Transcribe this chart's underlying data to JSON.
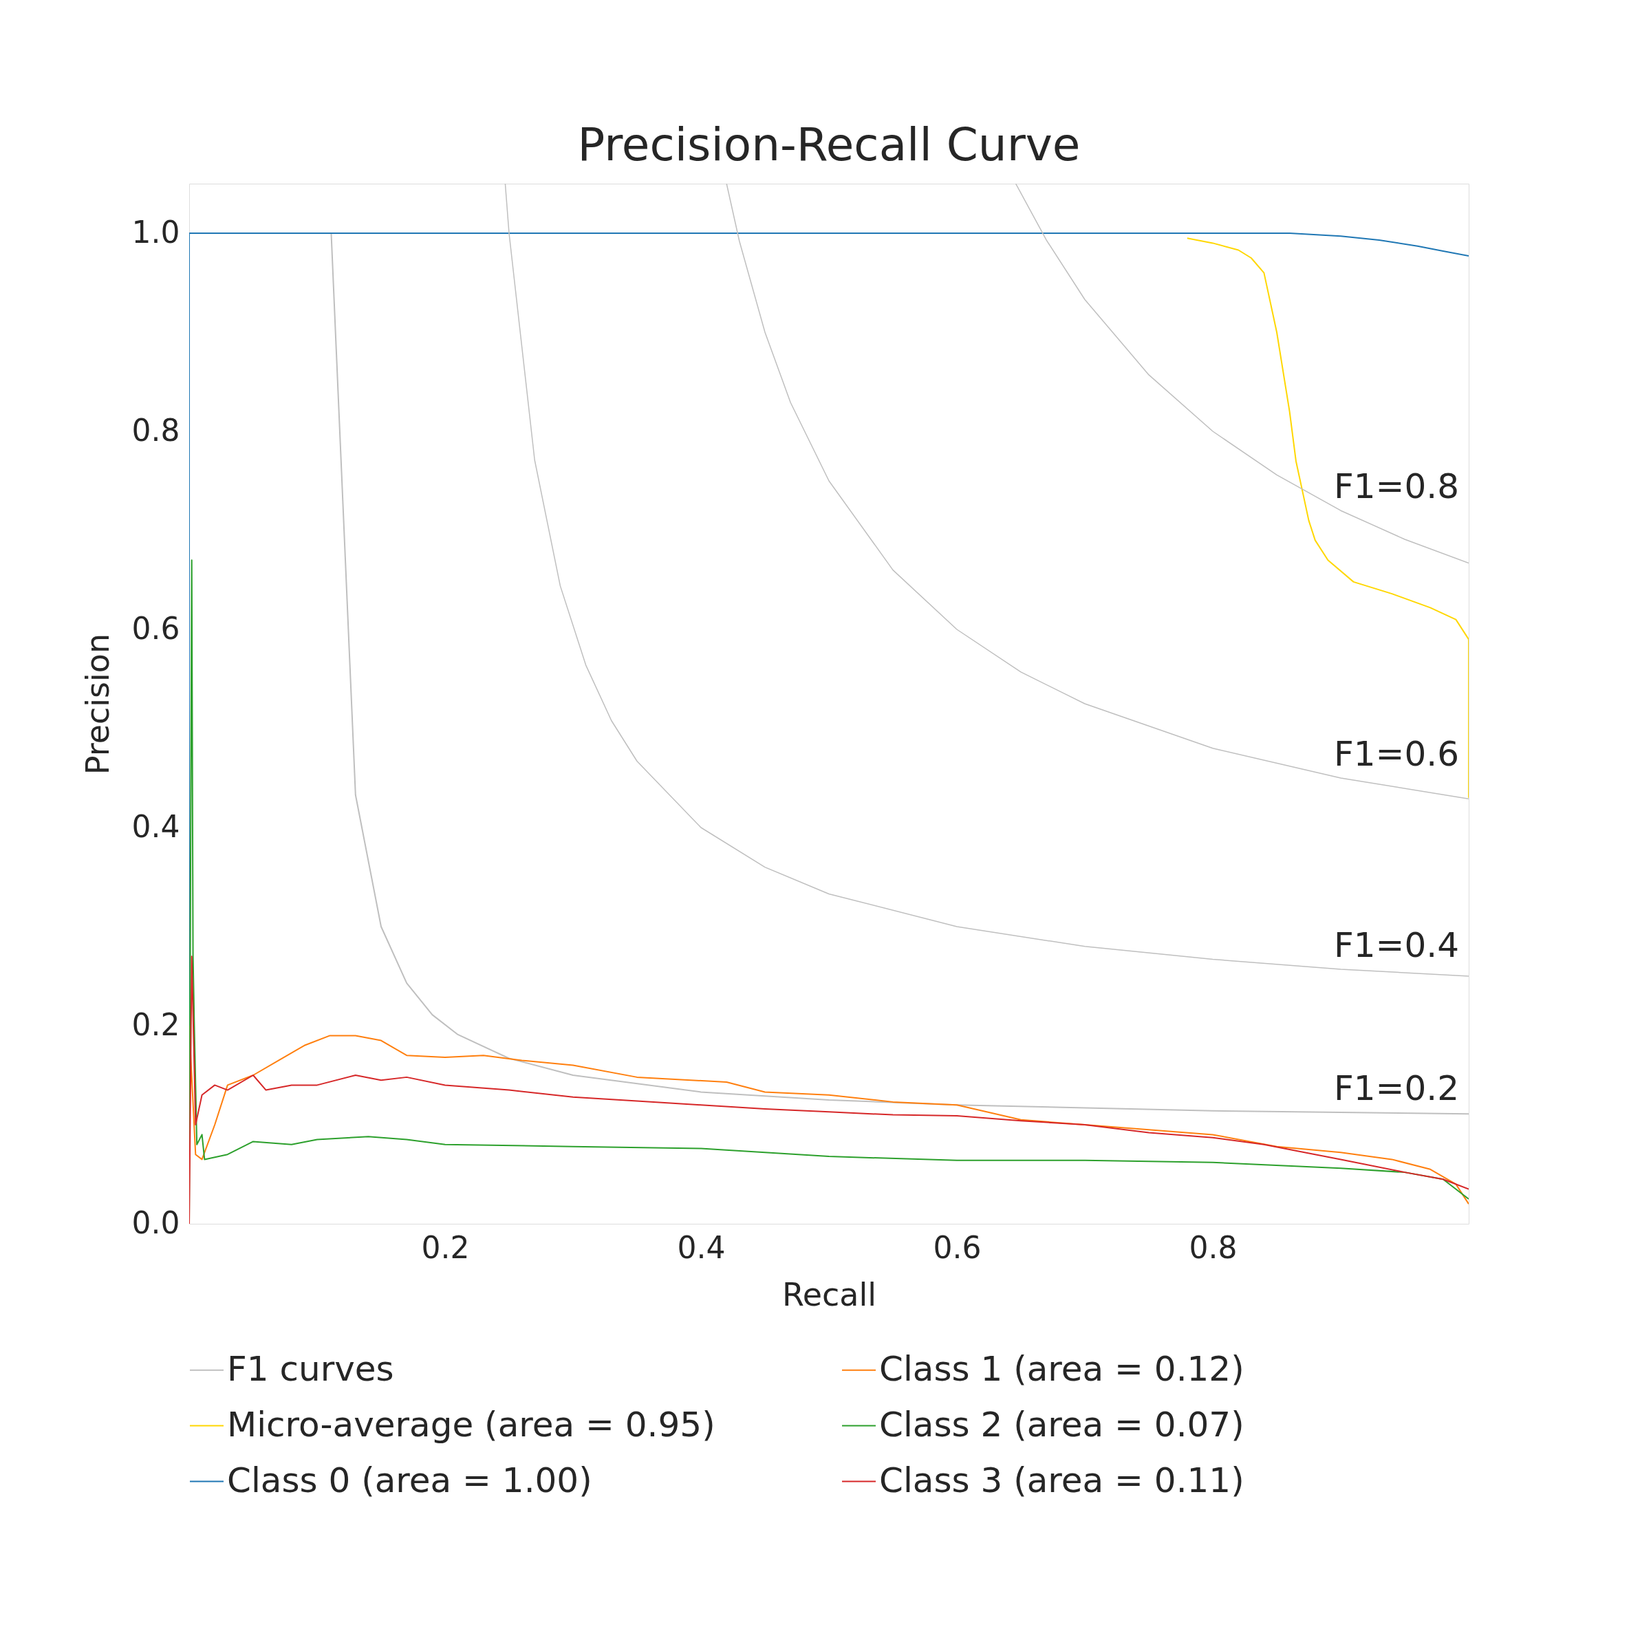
{
  "chart_data": {
    "type": "line",
    "title": "Precision-Recall Curve",
    "xlabel": "Recall",
    "ylabel": "Precision",
    "xlim": [
      0,
      1
    ],
    "ylim": [
      0,
      1.05
    ],
    "xticks": [
      0.2,
      0.4,
      0.6,
      0.8
    ],
    "yticks": [
      {
        "value": 0,
        "label": "0.0"
      },
      0.2,
      0.4,
      0.6,
      0.8,
      {
        "value": 1,
        "label": "1.0"
      }
    ],
    "grid": false,
    "legend": "bottom",
    "marker": "none",
    "line_style": "solid",
    "annotations": [
      "F1=0.8",
      "F1=0.6",
      "F1=0.4",
      "F1=0.2"
    ],
    "series": [
      {
        "name": "F1 curves",
        "color": "#bfbfbf",
        "x": [
          0.111,
          0.13,
          0.15,
          0.17,
          0.19,
          0.21,
          0.25,
          0.3,
          0.4,
          0.5,
          0.6,
          0.8,
          0.9,
          1.0
        ],
        "values": [
          1.0,
          0.433,
          0.3,
          0.243,
          0.211,
          0.191,
          0.167,
          0.15,
          0.133,
          0.125,
          0.12,
          0.114,
          0.1125,
          0.111
        ]
      },
      {
        "color": "#bfbfbf",
        "x": [
          0.247,
          0.25,
          0.27,
          0.29,
          0.31,
          0.33,
          0.35,
          0.4,
          0.45,
          0.5,
          0.6,
          0.7,
          0.8,
          0.9,
          1.0
        ],
        "values": [
          1.05,
          1.0,
          0.771,
          0.644,
          0.564,
          0.508,
          0.467,
          0.4,
          0.36,
          0.333,
          0.3,
          0.28,
          0.267,
          0.257,
          0.25
        ]
      },
      {
        "color": "#bfbfbf",
        "x": [
          0.42,
          0.43,
          0.45,
          0.47,
          0.5,
          0.55,
          0.6,
          0.65,
          0.7,
          0.8,
          0.9,
          1.0
        ],
        "values": [
          1.05,
          0.992,
          0.9,
          0.829,
          0.75,
          0.66,
          0.6,
          0.557,
          0.525,
          0.48,
          0.45,
          0.429
        ]
      },
      {
        "color": "#bfbfbf",
        "x": [
          0.646,
          0.67,
          0.7,
          0.75,
          0.8,
          0.85,
          0.9,
          0.95,
          1.0
        ],
        "values": [
          1.05,
          0.993,
          0.933,
          0.857,
          0.8,
          0.756,
          0.72,
          0.691,
          0.667
        ]
      },
      {
        "name": "Micro-average (area = 0.95)",
        "color": "#ffd700",
        "x": [
          0.78,
          0.8,
          0.82,
          0.83,
          0.84,
          0.85,
          0.86,
          0.865,
          0.87,
          0.875,
          0.88,
          0.89,
          0.91,
          0.94,
          0.97,
          0.99,
          1.0,
          1.0
        ],
        "values": [
          0.995,
          0.99,
          0.983,
          0.975,
          0.96,
          0.9,
          0.82,
          0.77,
          0.74,
          0.71,
          0.69,
          0.67,
          0.648,
          0.636,
          0.622,
          0.61,
          0.59,
          0.43
        ]
      },
      {
        "name": "Class 0 (area = 1.00)",
        "color": "#1f77b4",
        "x": [
          0,
          0,
          0.86,
          0.9,
          0.93,
          0.96,
          0.98,
          1.0
        ],
        "values": [
          0,
          1.0,
          1.0,
          0.997,
          0.993,
          0.987,
          0.982,
          0.977
        ]
      },
      {
        "name": "Class 1 (area = 0.12)",
        "color": "#ff7f0e",
        "x": [
          0,
          0.005,
          0.01,
          0.02,
          0.03,
          0.05,
          0.07,
          0.09,
          0.11,
          0.13,
          0.15,
          0.17,
          0.2,
          0.23,
          0.26,
          0.3,
          0.35,
          0.42,
          0.45,
          0.5,
          0.55,
          0.6,
          0.65,
          0.7,
          0.75,
          0.8,
          0.85,
          0.9,
          0.94,
          0.97,
          0.99,
          1.0
        ],
        "values": [
          0.2,
          0.07,
          0.065,
          0.1,
          0.14,
          0.15,
          0.165,
          0.18,
          0.19,
          0.19,
          0.185,
          0.17,
          0.168,
          0.17,
          0.165,
          0.16,
          0.148,
          0.143,
          0.133,
          0.13,
          0.123,
          0.12,
          0.105,
          0.1,
          0.095,
          0.09,
          0.078,
          0.072,
          0.065,
          0.055,
          0.04,
          0.02
        ]
      },
      {
        "name": "Class 2 (area = 0.07)",
        "color": "#2ca02c",
        "x": [
          0,
          0.002,
          0.003,
          0.004,
          0.006,
          0.01,
          0.012,
          0.03,
          0.05,
          0.08,
          0.1,
          0.14,
          0.17,
          0.2,
          0.3,
          0.4,
          0.45,
          0.5,
          0.6,
          0.7,
          0.8,
          0.9,
          0.95,
          0.98,
          1.0
        ],
        "values": [
          0,
          0.67,
          0.27,
          0.2,
          0.08,
          0.09,
          0.065,
          0.07,
          0.083,
          0.08,
          0.085,
          0.088,
          0.085,
          0.08,
          0.078,
          0.076,
          0.072,
          0.068,
          0.064,
          0.064,
          0.062,
          0.056,
          0.052,
          0.045,
          0.025
        ]
      },
      {
        "name": "Class 3 (area = 0.11)",
        "color": "#d62728",
        "x": [
          0,
          0.002,
          0.005,
          0.01,
          0.02,
          0.03,
          0.05,
          0.06,
          0.08,
          0.1,
          0.13,
          0.15,
          0.17,
          0.2,
          0.25,
          0.3,
          0.35,
          0.4,
          0.45,
          0.5,
          0.55,
          0.6,
          0.65,
          0.7,
          0.75,
          0.8,
          0.84,
          0.9,
          0.95,
          0.98,
          1.0
        ],
        "values": [
          0,
          0.27,
          0.1,
          0.13,
          0.14,
          0.135,
          0.15,
          0.135,
          0.14,
          0.14,
          0.15,
          0.145,
          0.148,
          0.14,
          0.135,
          0.128,
          0.124,
          0.12,
          0.116,
          0.113,
          0.11,
          0.109,
          0.104,
          0.1,
          0.092,
          0.087,
          0.08,
          0.065,
          0.052,
          0.045,
          0.035
        ]
      }
    ]
  }
}
